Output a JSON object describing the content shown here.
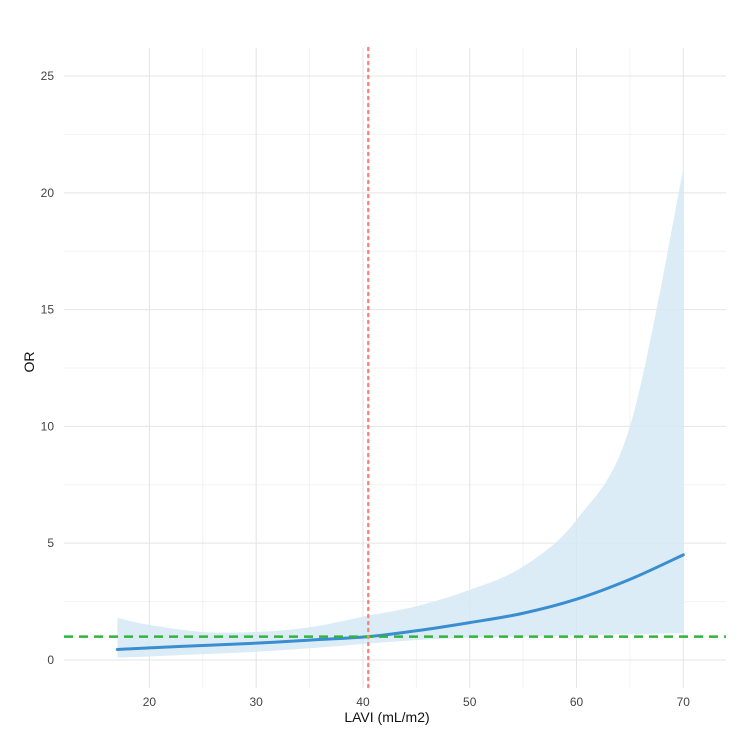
{
  "chart_data": {
    "type": "line",
    "title": "",
    "xlabel": "LAVI (mL/m2)",
    "ylabel": "OR",
    "xlim": [
      12,
      74
    ],
    "ylim": [
      -1.2,
      26.2
    ],
    "x_ticks": [
      20,
      30,
      40,
      50,
      60,
      70
    ],
    "y_ticks": [
      0,
      5,
      10,
      15,
      20,
      25
    ],
    "grid": true,
    "series": [
      {
        "kind": "line",
        "color": "#3a8ed0",
        "x": [
          17,
          20,
          25,
          30,
          35,
          40.5,
          45,
          50,
          55,
          60,
          65,
          70
        ],
        "y": [
          0.45,
          0.52,
          0.62,
          0.72,
          0.85,
          1.0,
          1.25,
          1.6,
          2.0,
          2.6,
          3.45,
          4.5
        ]
      },
      {
        "kind": "band",
        "color": "#d6e9f6",
        "x": [
          17,
          20,
          25,
          30,
          35,
          40.5,
          45,
          50,
          55,
          60,
          65,
          70
        ],
        "lower": [
          0.1,
          0.15,
          0.25,
          0.35,
          0.5,
          0.7,
          0.85,
          0.95,
          1.0,
          1.05,
          1.1,
          1.15
        ],
        "upper": [
          1.8,
          1.5,
          1.2,
          1.2,
          1.4,
          1.9,
          2.3,
          3.0,
          4.0,
          6.0,
          10.0,
          21.0
        ]
      }
    ],
    "reference_lines": [
      {
        "orientation": "horizontal",
        "value": 1,
        "color": "#2fb53a",
        "style": "dashed"
      },
      {
        "orientation": "vertical",
        "value": 40.5,
        "color": "#f08a80",
        "style": "dotted"
      }
    ]
  }
}
